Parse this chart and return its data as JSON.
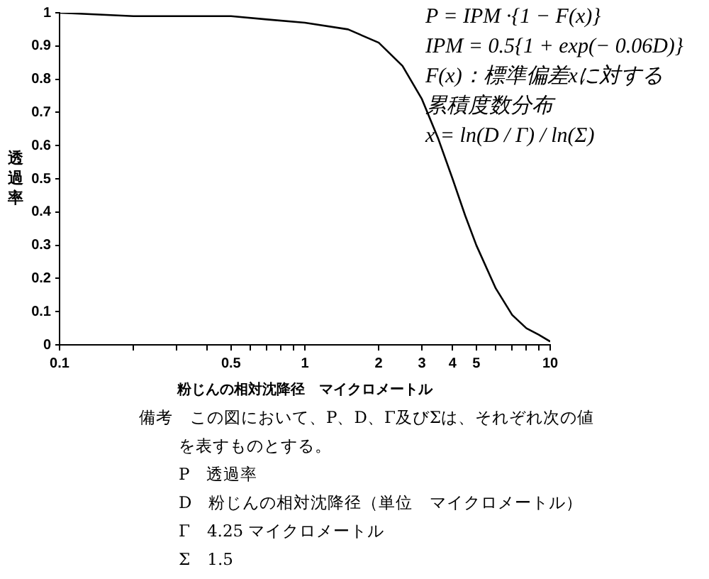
{
  "chart_data": {
    "type": "line",
    "xlabel": "粉じんの相対沈降径　マイクロメートル",
    "ylabel": "透過率",
    "x": [
      0.1,
      0.2,
      0.3,
      0.5,
      0.7,
      1,
      1.5,
      2,
      2.5,
      3,
      3.5,
      4,
      4.5,
      5,
      6,
      7,
      8,
      9,
      10
    ],
    "series": [
      {
        "color": "#000000",
        "values": [
          1.0,
          0.99,
          0.99,
          0.99,
          0.98,
          0.97,
          0.95,
          0.91,
          0.84,
          0.74,
          0.62,
          0.5,
          0.39,
          0.3,
          0.17,
          0.09,
          0.05,
          0.03,
          0.01
        ]
      }
    ],
    "log": "x",
    "xlim": [
      0.1,
      10
    ],
    "xticks": [
      0.1,
      {
        "value": 0.2,
        "label": null
      },
      {
        "value": 0.3,
        "label": null
      },
      {
        "value": 0.4,
        "label": null
      },
      0.5,
      {
        "value": 0.6,
        "label": null
      },
      {
        "value": 0.7,
        "label": null
      },
      {
        "value": 0.8,
        "label": null
      },
      {
        "value": 0.9,
        "label": null
      },
      1,
      2,
      3,
      4,
      5,
      {
        "value": 6,
        "label": null
      },
      {
        "value": 7,
        "label": null
      },
      {
        "value": 8,
        "label": null
      },
      {
        "value": 9,
        "label": null
      },
      10
    ],
    "ylim": [
      0,
      1
    ],
    "yticks": [
      0,
      0.1,
      0.2,
      0.3,
      0.4,
      0.5,
      0.6,
      0.7,
      0.8,
      0.9,
      1
    ],
    "grid": false,
    "legend": false,
    "marker": "none",
    "line_style": "solid",
    "annotations": [
      "P = IPM ·{1 − F(x)}",
      "IPM = 0.5{1 + exp(− 0.06D)}",
      "F(x)：標準偏差xに対する累積度数分布",
      "x = ln(D / Γ) / ln(Σ)",
      "備考　この図において、P、D、Γ及びΣは、それぞれ次の値を表すものとする。",
      "P　透過率",
      "D　粉じんの相対沈降径（単位　マイクロメートル）",
      "Γ　4.25 マイクロメートル",
      "Σ　1.5"
    ]
  }
}
